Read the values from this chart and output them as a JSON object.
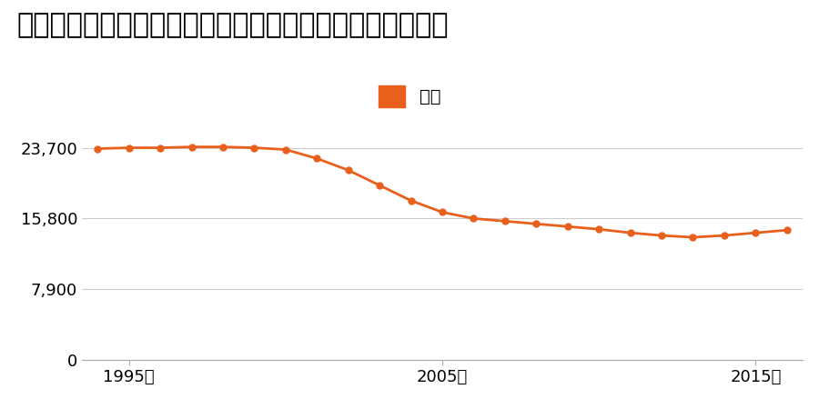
{
  "title": "宮城県亘理郡山元町浅生原字作田山２番１００の地価推移",
  "legend_label": "価格",
  "years": [
    1994,
    1995,
    1996,
    1997,
    1998,
    1999,
    2000,
    2001,
    2002,
    2003,
    2004,
    2005,
    2006,
    2007,
    2008,
    2009,
    2010,
    2011,
    2012,
    2013,
    2014,
    2015,
    2016
  ],
  "values": [
    23600,
    23700,
    23700,
    23800,
    23800,
    23700,
    23500,
    22500,
    21200,
    19500,
    17800,
    16500,
    15800,
    15500,
    15200,
    14900,
    14600,
    14200,
    13900,
    13700,
    13900,
    14200,
    14500
  ],
  "line_color": "#E8601C",
  "marker_color": "#E8601C",
  "background_color": "#ffffff",
  "grid_color": "#cccccc",
  "yticks": [
    0,
    7900,
    15800,
    23700
  ],
  "ylim": [
    0,
    26500
  ],
  "xticks": [
    1995,
    2005,
    2015
  ],
  "xlim": [
    1993.5,
    2016.5
  ],
  "title_fontsize": 22,
  "legend_fontsize": 14,
  "tick_fontsize": 13
}
